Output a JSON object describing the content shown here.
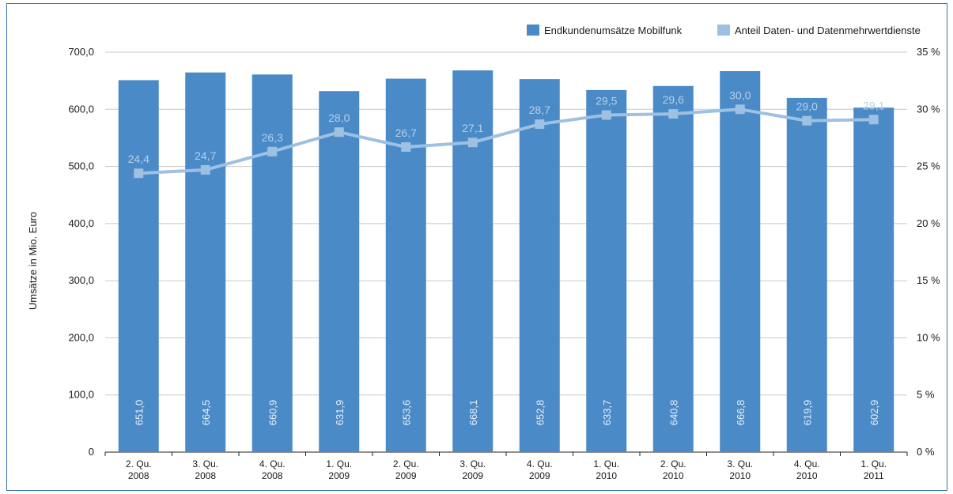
{
  "chart_data": {
    "type": "bar",
    "ylabel": "Umsätze in Mio. Euro",
    "categories": [
      [
        "2. Qu.",
        "2008"
      ],
      [
        "3. Qu.",
        "2008"
      ],
      [
        "4. Qu.",
        "2008"
      ],
      [
        "1. Qu.",
        "2009"
      ],
      [
        "2. Qu.",
        "2009"
      ],
      [
        "3. Qu.",
        "2009"
      ],
      [
        "4. Qu.",
        "2009"
      ],
      [
        "1. Qu.",
        "2010"
      ],
      [
        "2. Qu.",
        "2010"
      ],
      [
        "3. Qu.",
        "2010"
      ],
      [
        "4. Qu.",
        "2010"
      ],
      [
        "1. Qu.",
        "2011"
      ]
    ],
    "ylim": [
      0,
      700
    ],
    "y_ticks": [
      "0",
      "100,0",
      "200,0",
      "300,0",
      "400,0",
      "500,0",
      "600,0",
      "700,0"
    ],
    "y2lim": [
      0,
      35
    ],
    "y2_ticks": [
      "0 %",
      "5 %",
      "10 %",
      "15 %",
      "20 %",
      "25 %",
      "30 %",
      "35 %"
    ],
    "grid": true,
    "legend_position": "top-right",
    "series": [
      {
        "name": "Endkundenumsätze Mobilfunk",
        "type": "bar",
        "axis": "left",
        "color": "#4a8ac7",
        "values": [
          651.0,
          664.5,
          660.9,
          631.9,
          653.6,
          668.1,
          652.8,
          633.7,
          640.8,
          666.8,
          619.9,
          602.9
        ],
        "labels": [
          "651,0",
          "664,5",
          "660,9",
          "631,9",
          "653,6",
          "668,1",
          "652,8",
          "633,7",
          "640,8",
          "666,8",
          "619,9",
          "602,9"
        ]
      },
      {
        "name": "Anteil Daten- und Datenmehrwertdienste",
        "type": "line",
        "axis": "right",
        "color": "#9dc0e3",
        "values": [
          24.4,
          24.7,
          26.3,
          28.0,
          26.7,
          27.1,
          28.7,
          29.5,
          29.6,
          30.0,
          29.0,
          29.1
        ],
        "labels": [
          "24,4",
          "24,7",
          "26,3",
          "28,0",
          "26,7",
          "27,1",
          "28,7",
          "29,5",
          "29,6",
          "30,0",
          "29,0",
          "29,1"
        ]
      }
    ]
  }
}
